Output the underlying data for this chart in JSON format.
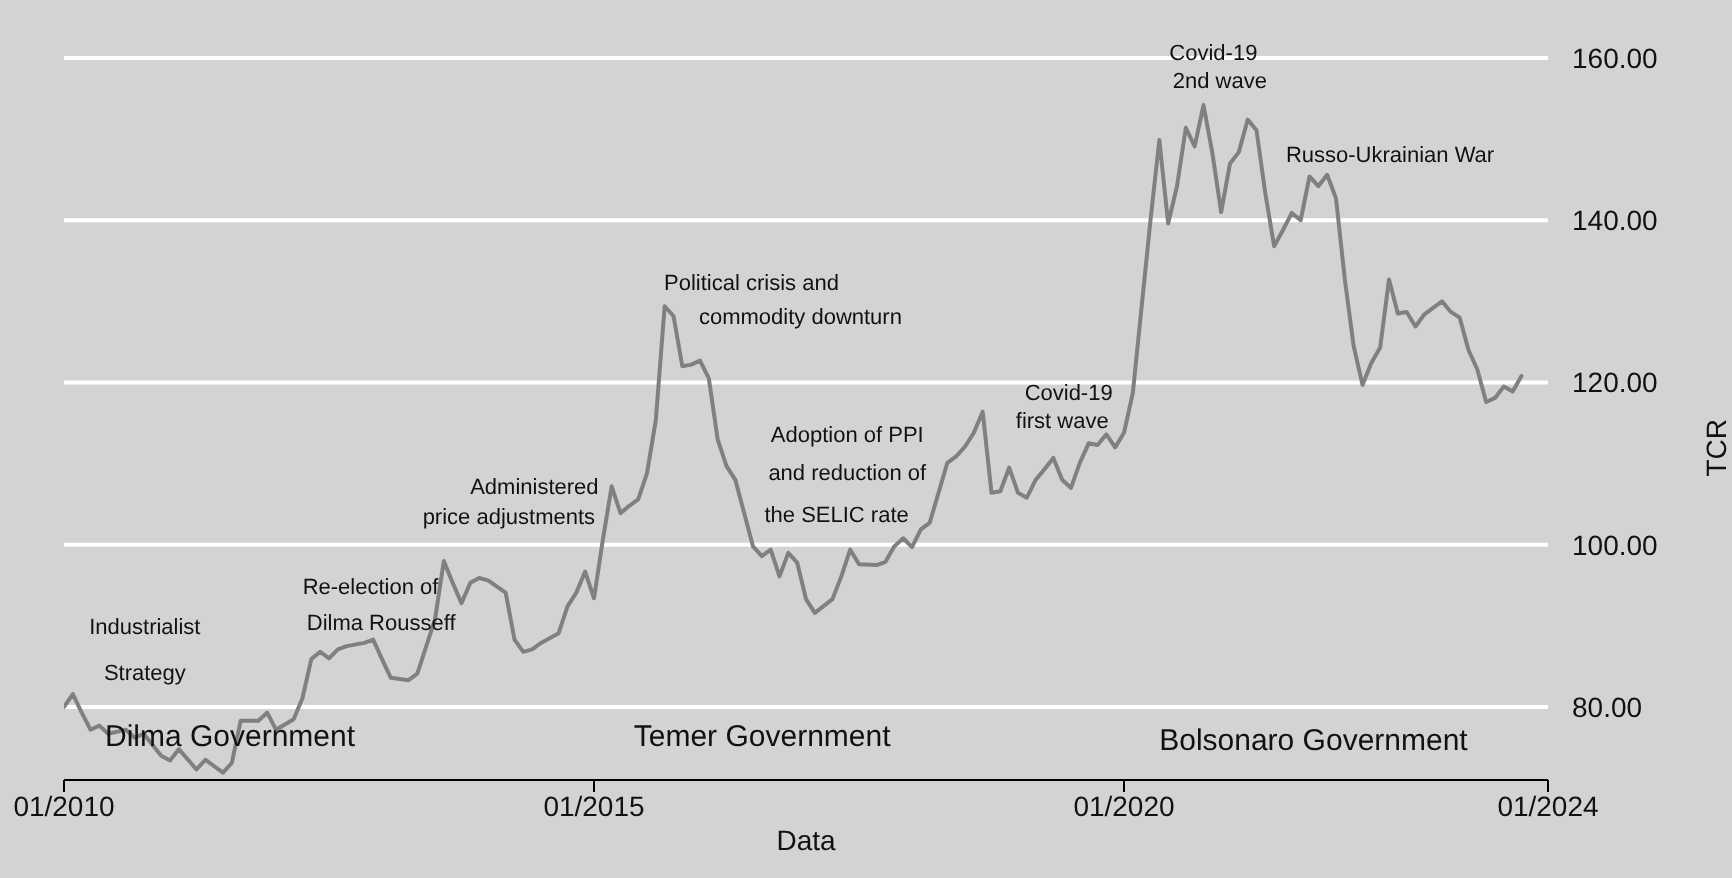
{
  "chart_data": {
    "type": "line",
    "xlabel": "Data",
    "ylabel": "TCR",
    "x": [
      "2010-01",
      "2010-02",
      "2010-03",
      "2010-04",
      "2010-05",
      "2010-06",
      "2010-08",
      "2010-09",
      "2010-10",
      "2010-12",
      "2011-01",
      "2011-02",
      "2011-04",
      "2011-05",
      "2011-07",
      "2011-08",
      "2011-09",
      "2011-11",
      "2011-12",
      "2012-01",
      "2012-03",
      "2012-04",
      "2012-05",
      "2012-06",
      "2012-07",
      "2012-08",
      "2012-09",
      "2012-11",
      "2012-12",
      "2013-01",
      "2013-02",
      "2013-04",
      "2013-05",
      "2013-07",
      "2013-08",
      "2013-09",
      "2013-10",
      "2013-11",
      "2013-12",
      "2014-01",
      "2014-03",
      "2014-04",
      "2014-05",
      "2014-06",
      "2014-07",
      "2014-09",
      "2014-10",
      "2014-11",
      "2014-12",
      "2015-01",
      "2015-02",
      "2015-03",
      "2015-04",
      "2015-05",
      "2015-06",
      "2015-07",
      "2015-08",
      "2015-09",
      "2015-10",
      "2015-11",
      "2015-12",
      "2016-01",
      "2016-02",
      "2016-03",
      "2016-04",
      "2016-05",
      "2016-06",
      "2016-07",
      "2016-08",
      "2016-09",
      "2016-10",
      "2016-11",
      "2016-12",
      "2017-01",
      "2017-02",
      "2017-04",
      "2017-05",
      "2017-06",
      "2017-07",
      "2017-09",
      "2017-10",
      "2017-11",
      "2017-12",
      "2018-01",
      "2018-02",
      "2018-03",
      "2018-04",
      "2018-05",
      "2018-06",
      "2018-07",
      "2018-08",
      "2018-09",
      "2018-10",
      "2018-11",
      "2018-12",
      "2019-01",
      "2019-02",
      "2019-03",
      "2019-04",
      "2019-05",
      "2019-06",
      "2019-07",
      "2019-08",
      "2019-09",
      "2019-10",
      "2019-11",
      "2019-12",
      "2020-01",
      "2020-02",
      "2020-03",
      "2020-04",
      "2020-05",
      "2020-06",
      "2020-07",
      "2020-08",
      "2020-09",
      "2020-10",
      "2020-11",
      "2020-12",
      "2021-01",
      "2021-02",
      "2021-03",
      "2021-04",
      "2021-05",
      "2021-06",
      "2021-07",
      "2021-08",
      "2021-09",
      "2021-10",
      "2021-11",
      "2021-12",
      "2022-01",
      "2022-02",
      "2022-03",
      "2022-04",
      "2022-05",
      "2022-06",
      "2022-07",
      "2022-08",
      "2022-09",
      "2022-10",
      "2022-11",
      "2023-01",
      "2023-02",
      "2023-03",
      "2023-04",
      "2023-05",
      "2023-06",
      "2023-07",
      "2023-08",
      "2023-09",
      "2023-10"
    ],
    "series": [
      {
        "color": "#808080",
        "values": [
          80.0,
          81.6,
          79.3,
          77.2,
          77.7,
          76.7,
          77.2,
          76.2,
          76.7,
          74.0,
          73.4,
          74.8,
          72.3,
          73.5,
          71.9,
          73.1,
          78.3,
          78.3,
          79.3,
          77.2,
          78.5,
          81.1,
          85.9,
          86.8,
          86.0,
          87.1,
          87.5,
          87.9,
          88.3,
          85.9,
          83.6,
          83.3,
          84.1,
          90.8,
          98.0,
          95.3,
          92.8,
          95.3,
          95.9,
          95.6,
          94.1,
          88.3,
          86.8,
          87.1,
          87.9,
          89.1,
          92.4,
          94.1,
          96.7,
          93.4,
          100.6,
          107.2,
          103.9,
          104.8,
          105.6,
          108.8,
          115.4,
          129.4,
          128.2,
          122.0,
          122.2,
          122.7,
          120.5,
          113.0,
          109.7,
          108.0,
          103.9,
          99.8,
          98.6,
          99.4,
          96.1,
          99.0,
          97.8,
          93.3,
          91.6,
          93.3,
          96.1,
          99.4,
          97.6,
          97.5,
          97.9,
          99.8,
          100.8,
          99.7,
          101.9,
          102.7,
          106.4,
          110.1,
          110.9,
          112.1,
          113.8,
          116.4,
          106.4,
          106.6,
          109.5,
          106.4,
          105.8,
          108.0,
          109.3,
          110.7,
          108.0,
          107.0,
          110.1,
          112.5,
          112.3,
          113.6,
          112.0,
          113.8,
          118.7,
          129.4,
          140.0,
          149.9,
          139.6,
          144.2,
          151.4,
          149.1,
          154.2,
          148.3,
          141.0,
          147.0,
          148.4,
          152.4,
          151.1,
          143.3,
          136.8,
          138.8,
          140.9,
          140.0,
          145.4,
          144.2,
          145.6,
          142.7,
          132.7,
          124.5,
          119.7,
          122.4,
          124.3,
          132.7,
          128.5,
          128.7,
          126.9,
          128.4,
          130.0,
          128.7,
          128.0,
          124.0,
          121.6,
          117.6,
          118.1,
          119.5,
          118.9,
          120.8
        ]
      }
    ],
    "xlim": [
      "2010-01",
      "2024-01"
    ],
    "xticks": [
      {
        "value": "2010-01",
        "label": "01/2010"
      },
      {
        "value": "2015-01",
        "label": "01/2015"
      },
      {
        "value": "2020-01",
        "label": "01/2020"
      },
      {
        "value": "2024-01",
        "label": "01/2024"
      }
    ],
    "ylim": [
      71,
      160
    ],
    "yticks": [
      {
        "value": 80,
        "label": "80.00"
      },
      {
        "value": 100,
        "label": "100.00"
      },
      {
        "value": 120,
        "label": "120.00"
      },
      {
        "value": 140,
        "label": "140.00"
      },
      {
        "value": 160,
        "label": "160.00"
      }
    ],
    "grid": "y",
    "marker": "none",
    "line_style": "solid",
    "annotations": [
      "Industrialist\nStrategy",
      "Re-election of\nDilma Rousseff",
      "Administered\nprice adjustments",
      "Political crisis and\ncommodity downturn",
      "Adoption of PPI\nand reduction of\nthe SELIC rate",
      "Covid-19\nfirst wave",
      "Covid-19\n2nd wave",
      "Russo-Ukrainian War",
      "Dilma Government",
      "Temer Government",
      "Bolsonaro Government"
    ]
  }
}
